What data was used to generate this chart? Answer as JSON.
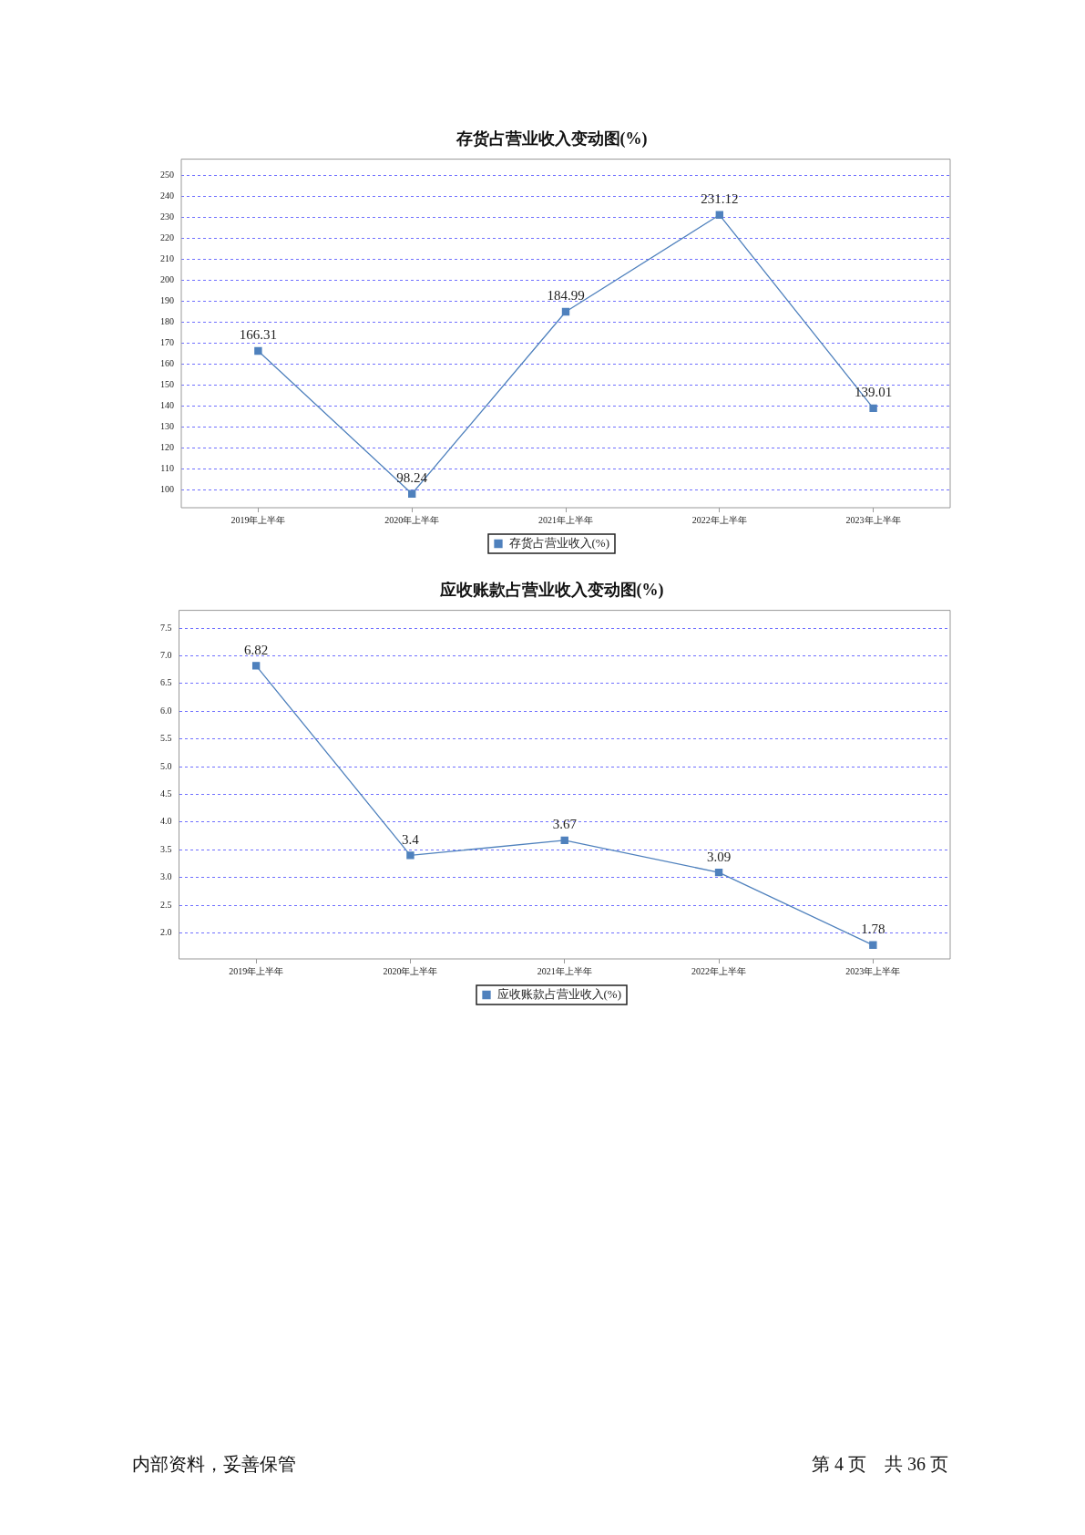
{
  "chart_data": [
    {
      "type": "line",
      "title": "存货占营业收入变动图(%)",
      "categories": [
        "2019年上半年",
        "2020年上半年",
        "2021年上半年",
        "2022年上半年",
        "2023年上半年"
      ],
      "series": [
        {
          "name": "存货占营业收入(%)",
          "color": "#4f81bd",
          "values": [
            166.31,
            98.24,
            184.99,
            231.12,
            139.01
          ]
        }
      ],
      "ylim": [
        91.6,
        257.7
      ],
      "yticks": [
        100,
        110,
        120,
        130,
        140,
        150,
        160,
        170,
        180,
        190,
        200,
        210,
        220,
        230,
        240,
        250
      ],
      "grid": "y",
      "legend": "bottom",
      "marker": "square",
      "data_labels": true
    },
    {
      "type": "line",
      "title": "应收账款占营业收入变动图(%)",
      "categories": [
        "2019年上半年",
        "2020年上半年",
        "2021年上半年",
        "2022年上半年",
        "2023年上半年"
      ],
      "series": [
        {
          "name": "应收账款占营业收入(%)",
          "color": "#4f81bd",
          "values": [
            6.82,
            3.4,
            3.67,
            3.09,
            1.78
          ]
        }
      ],
      "ylim": [
        1.53,
        7.82
      ],
      "yticks": [
        {
          "value": 2,
          "label": "2.0"
        },
        {
          "value": 2.5,
          "label": "2.5"
        },
        {
          "value": 3,
          "label": "3.0"
        },
        {
          "value": 3.5,
          "label": "3.5"
        },
        {
          "value": 4,
          "label": "4.0"
        },
        {
          "value": 4.5,
          "label": "4.5"
        },
        {
          "value": 5,
          "label": "5.0"
        },
        {
          "value": 5.5,
          "label": "5.5"
        },
        {
          "value": 6,
          "label": "6.0"
        },
        {
          "value": 6.5,
          "label": "6.5"
        },
        {
          "value": 7,
          "label": "7.0"
        },
        {
          "value": 7.5,
          "label": "7.5"
        }
      ],
      "grid": "y",
      "legend": "bottom",
      "marker": "square",
      "data_labels": true,
      "annotations": [
        "内部资料，妥善保管",
        "第 4 页　共 36 页"
      ]
    }
  ]
}
